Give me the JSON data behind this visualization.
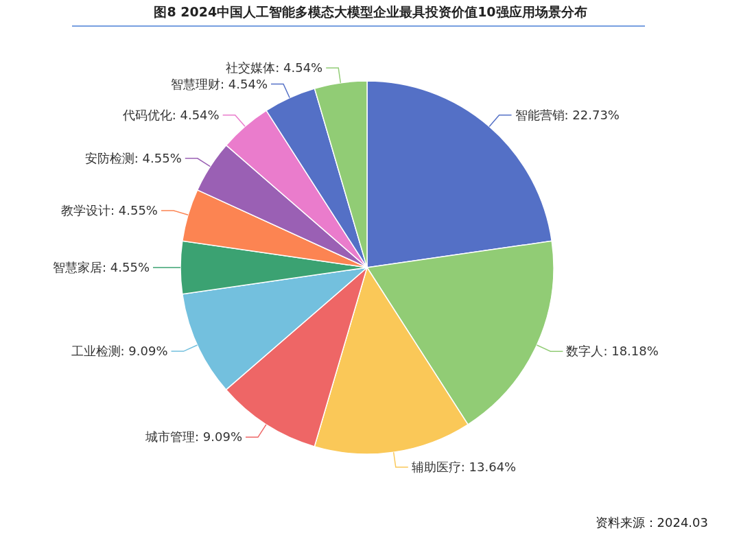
{
  "chart_data": {
    "type": "pie",
    "title": "图8  2024中国人工智能多模态大模型企业最具投资价值10强应用场景分布",
    "categories": [
      "智能营销",
      "数字人",
      "辅助医疗",
      "城市管理",
      "工业检测",
      "智慧家居",
      "教学设计",
      "安防检测",
      "代码优化",
      "智慧理财",
      "社交媒体"
    ],
    "values": [
      22.73,
      18.18,
      13.64,
      9.09,
      9.09,
      4.55,
      4.55,
      4.55,
      4.54,
      4.54,
      4.54
    ],
    "colors": [
      "#5470c6",
      "#91cc75",
      "#fac858",
      "#ee6666",
      "#73c0de",
      "#3ba272",
      "#fc8452",
      "#9a60b4",
      "#ea7ccc",
      "#5470c6",
      "#91cc75"
    ],
    "value_labels": [
      ": 22.73%",
      ": 18.18%",
      ": 13.64%",
      ": 9.09%",
      ": 9.09%",
      ": 4.55%",
      ": 4.55%",
      ": 4.55%",
      ": 4.54%",
      ": 4.54%",
      ": 4.54%"
    ],
    "annotations": [
      "资料来源：2024.03"
    ]
  }
}
